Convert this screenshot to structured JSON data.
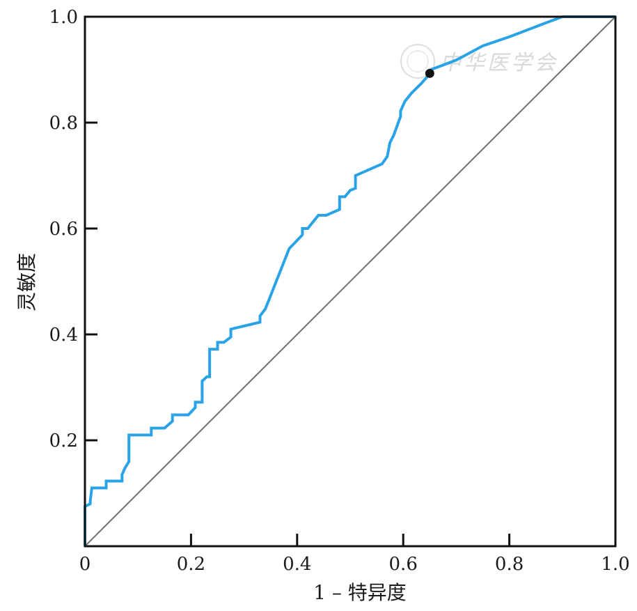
{
  "chart_data": {
    "type": "line",
    "title": "",
    "xlabel": "1 – 特异度",
    "ylabel": "灵敏度",
    "xlim": [
      0,
      1
    ],
    "ylim": [
      0,
      1
    ],
    "x_ticks": [
      0,
      0.2,
      0.4,
      0.6,
      0.8,
      1.0
    ],
    "x_tick_labels": [
      "0",
      "0.2",
      "0.4",
      "0.6",
      "0.8",
      "1.0"
    ],
    "y_ticks": [
      0.2,
      0.4,
      0.6,
      0.8,
      1.0
    ],
    "y_tick_labels": [
      "0.2",
      "0.4",
      "0.6",
      "0.8",
      "1.0"
    ],
    "grid": false,
    "legend": "none",
    "series": [
      {
        "color": "#2aa3e6",
        "x": [
          0,
          0,
          0.01,
          0.01,
          0.013,
          0.04,
          0.04,
          0.07,
          0.07,
          0.075,
          0.083,
          0.083,
          0.125,
          0.125,
          0.15,
          0.165,
          0.165,
          0.195,
          0.208,
          0.208,
          0.221,
          0.221,
          0.23,
          0.235,
          0.235,
          0.25,
          0.25,
          0.262,
          0.275,
          0.275,
          0.33,
          0.33,
          0.34,
          0.385,
          0.41,
          0.41,
          0.42,
          0.44,
          0.455,
          0.48,
          0.48,
          0.49,
          0.5,
          0.51,
          0.51,
          0.56,
          0.57,
          0.575,
          0.582,
          0.595,
          0.595,
          0.603,
          0.615,
          0.63,
          0.635,
          0.65,
          0.652,
          0.7,
          0.75,
          0.8,
          0.86,
          0.9,
          1.0
        ],
        "y": [
          0,
          0.075,
          0.08,
          0.085,
          0.11,
          0.11,
          0.123,
          0.123,
          0.135,
          0.147,
          0.16,
          0.21,
          0.21,
          0.223,
          0.223,
          0.236,
          0.248,
          0.248,
          0.262,
          0.272,
          0.272,
          0.312,
          0.32,
          0.32,
          0.372,
          0.372,
          0.385,
          0.385,
          0.395,
          0.41,
          0.423,
          0.435,
          0.448,
          0.562,
          0.588,
          0.6,
          0.6,
          0.625,
          0.625,
          0.636,
          0.66,
          0.66,
          0.672,
          0.676,
          0.7,
          0.722,
          0.736,
          0.762,
          0.776,
          0.812,
          0.822,
          0.84,
          0.855,
          0.87,
          0.875,
          0.892,
          0.9,
          0.918,
          0.945,
          0.962,
          0.985,
          1.0,
          1.0
        ]
      }
    ],
    "reference_line": {
      "x": [
        0,
        1
      ],
      "y": [
        0,
        1
      ],
      "color": "#707070"
    },
    "marked_point": {
      "x": 0.65,
      "y": 0.893,
      "color": "#111111"
    }
  },
  "watermark": {
    "text": "中华医学会"
  }
}
